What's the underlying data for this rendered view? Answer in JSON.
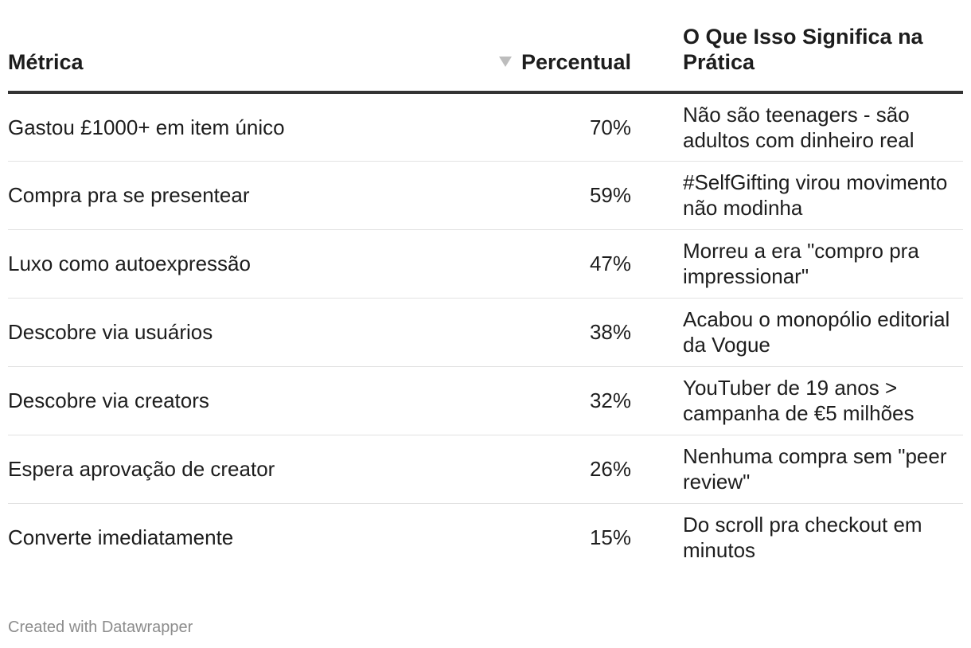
{
  "chart_data": {
    "type": "table",
    "columns": [
      "Métrica",
      "Percentual",
      "O Que Isso Significa na Prática"
    ],
    "sorted_column": "Percentual",
    "sort_direction": "descending",
    "rows": [
      {
        "metric": "Gastou £1000+ em item único",
        "percent": "70%",
        "value": 70,
        "meaning": "Não são teenagers - são adultos com dinheiro real"
      },
      {
        "metric": "Compra pra se presentear",
        "percent": "59%",
        "value": 59,
        "meaning": "#SelfGifting virou movimento não modinha"
      },
      {
        "metric": "Luxo como autoexpressão",
        "percent": "47%",
        "value": 47,
        "meaning": "Morreu a era \"compro pra impressionar\""
      },
      {
        "metric": "Descobre via usuários",
        "percent": "38%",
        "value": 38,
        "meaning": "Acabou o monopólio editorial da Vogue"
      },
      {
        "metric": "Descobre via creators",
        "percent": "32%",
        "value": 32,
        "meaning": "YouTuber de 19 anos > campanha de €5 milhões"
      },
      {
        "metric": "Espera aprovação de creator",
        "percent": "26%",
        "value": 26,
        "meaning": "Nenhuma compra sem \"peer review\""
      },
      {
        "metric": "Converte imediatamente",
        "percent": "15%",
        "value": 15,
        "meaning": "Do scroll pra checkout em minutos"
      }
    ]
  },
  "footer": {
    "credit": "Created with Datawrapper"
  },
  "colors": {
    "text": "#1d1d1d",
    "header_rule": "#333333",
    "row_rule": "#e2e2e2",
    "sort_arrow": "#bdbdbd",
    "footer_text": "#8c8c8c"
  }
}
